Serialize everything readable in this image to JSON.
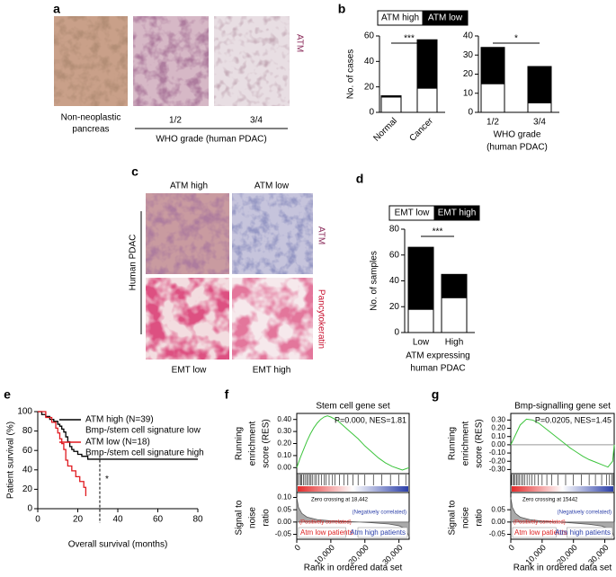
{
  "panel_labels": [
    "a",
    "b",
    "c",
    "d",
    "e",
    "f",
    "g"
  ],
  "panel_a": {
    "stain": "ATM",
    "captions": [
      "Non-neoplastic",
      "pancreas"
    ],
    "grades": [
      "1/2",
      "3/4"
    ],
    "grade_title": "WHO grade (human PDAC)"
  },
  "panel_c": {
    "columns": [
      "ATM high",
      "ATM low"
    ],
    "row_title": "Human PDAC",
    "stains": [
      "ATM",
      "Pancytokeratin"
    ],
    "bottom": [
      "EMT low",
      "EMT high"
    ]
  },
  "chart_data": [
    {
      "type": "bar",
      "stacked": true,
      "ylabel": "No. of cases",
      "categories": [
        "Normal",
        "Cancer"
      ],
      "series": [
        {
          "name": "ATM high",
          "color": "#ffffff",
          "values": [
            12,
            19
          ]
        },
        {
          "name": "ATM low",
          "color": "#000000",
          "values": [
            1,
            38
          ]
        }
      ],
      "ylim": [
        0,
        60
      ],
      "yticks": [
        0,
        20,
        40,
        60
      ],
      "annotation": "***",
      "legend": true,
      "rotate_categories": true
    },
    {
      "type": "bar",
      "stacked": true,
      "xlabel": [
        "WHO grade",
        "(human PDAC)"
      ],
      "categories": [
        "1/2",
        "3/4"
      ],
      "series": [
        {
          "color": "#ffffff",
          "values": [
            15,
            5
          ]
        },
        {
          "color": "#000000",
          "values": [
            19,
            19
          ]
        }
      ],
      "ylim": [
        0,
        40
      ],
      "yticks": [
        0,
        10,
        20,
        30,
        40
      ],
      "annotation": "*"
    },
    {
      "type": "bar",
      "stacked": true,
      "ylabel": "No. of samples",
      "xlabel": [
        "ATM expressing",
        "human PDAC"
      ],
      "categories": [
        "Low",
        "High"
      ],
      "series": [
        {
          "name": "EMT low",
          "color": "#ffffff",
          "values": [
            18,
            27
          ]
        },
        {
          "name": "EMT high",
          "color": "#000000",
          "values": [
            48,
            18
          ]
        }
      ],
      "ylim": [
        0,
        80
      ],
      "yticks": [
        0,
        20,
        40,
        60,
        80
      ],
      "annotation": "***",
      "legend": true
    },
    {
      "type": "line",
      "step": true,
      "xlabel": "Overall survival (months)",
      "ylabel": "Patient survival (%)",
      "xlim": [
        0,
        80
      ],
      "xticks": [
        0,
        20,
        40,
        60,
        80
      ],
      "ylim": [
        0,
        100
      ],
      "yticks": [
        0,
        20,
        40,
        60,
        80,
        100
      ],
      "series": [
        {
          "name": "ATM high (N=39)",
          "subtitle": "Bmp-/stem cell signature low",
          "color": "#000000",
          "x": [
            0,
            2,
            4,
            6,
            8,
            10,
            11,
            12,
            13,
            14,
            15,
            16,
            17,
            18,
            20,
            22,
            25,
            80
          ],
          "values": [
            100,
            97,
            95,
            92,
            90,
            87,
            85,
            82,
            79,
            74,
            69,
            64,
            61,
            59,
            56,
            54,
            51,
            51
          ]
        },
        {
          "name": "ATM low (N=18)",
          "subtitle": "Bmp-/stem cell signature high",
          "color": "#e0191f",
          "x": [
            0,
            4,
            7,
            9,
            10,
            11,
            12,
            13,
            14,
            15,
            17,
            19,
            21,
            23,
            24
          ],
          "values": [
            100,
            94,
            89,
            83,
            78,
            72,
            67,
            61,
            50,
            44,
            39,
            33,
            28,
            22,
            13
          ]
        }
      ],
      "annotation": "*",
      "marker_x": 31
    },
    {
      "type": "gsea",
      "title": "Stem cell gene set",
      "annotation": "P=0.000, NES=1.81",
      "ylabel": [
        "Running",
        "enrichment",
        "score (RES)"
      ],
      "metric_label": [
        "Signal to",
        "noise",
        "ratio"
      ],
      "xlabel": "Rank in ordered data set",
      "xlim": [
        0,
        33000
      ],
      "xticks": [
        0,
        {
          "value": 10000,
          "label": "10,000"
        },
        {
          "value": 20000,
          "label": "20,000"
        },
        {
          "value": 30000,
          "label": "30,000"
        }
      ],
      "ylim": [
        -0.05,
        0.45
      ],
      "yticks": [
        {
          "value": 0,
          "label": "0.00"
        },
        {
          "value": 0.1,
          "label": "0.10"
        },
        {
          "value": 0.2,
          "label": "0.20"
        },
        {
          "value": 0.3,
          "label": "0.30"
        },
        {
          "value": 0.4,
          "label": "0.40"
        }
      ],
      "color": "#3cc43c",
      "x": [
        0,
        1000,
        2000,
        3000,
        4000,
        5000,
        6000,
        7000,
        8000,
        9000,
        10000,
        12000,
        14000,
        16000,
        18000,
        20000,
        22000,
        24000,
        26000,
        28000,
        30000,
        31000,
        32000,
        33000
      ],
      "values": [
        0,
        0.08,
        0.15,
        0.22,
        0.28,
        0.33,
        0.37,
        0.4,
        0.42,
        0.43,
        0.42,
        0.39,
        0.34,
        0.29,
        0.24,
        0.18,
        0.13,
        0.08,
        0.04,
        0.01,
        -0.01,
        -0.02,
        -0.01,
        0
      ],
      "hits": [
        300,
        800,
        1200,
        1500,
        2000,
        2400,
        2900,
        3300,
        3800,
        4200,
        4700,
        5300,
        5800,
        6500,
        7200,
        8000,
        8600,
        9500,
        10500,
        11200,
        12500,
        13800,
        15000,
        16500,
        18000,
        20000,
        22500,
        25000,
        27500,
        30000,
        32000
      ],
      "zero_crossing": "Zero crossing at 18,442",
      "pos_label": "(Positively correlated)",
      "neg_label": "(Negatively correlated)",
      "pos_group": "Atm low patients",
      "neg_group": "Atm high patients",
      "metric": {
        "x": [
          0,
          500,
          1500,
          3000,
          6000,
          10000,
          15000,
          18442,
          22000,
          27000,
          30000,
          31500,
          32500,
          33000
        ],
        "values": [
          0.1,
          0.06,
          0.035,
          0.02,
          0.01,
          0.005,
          0.002,
          0,
          -0.003,
          -0.008,
          -0.015,
          -0.025,
          -0.045,
          -0.06
        ],
        "ylim": [
          -0.07,
          0.12
        ],
        "yticks": [
          {
            "value": -0.05,
            "label": "-0.05"
          },
          {
            "value": 0,
            "label": "0.00"
          },
          {
            "value": 0.05,
            "label": "0.05"
          },
          {
            "value": 0.1,
            "label": "0.10"
          }
        ]
      }
    },
    {
      "type": "gsea",
      "title": "Bmp-signalling gene set",
      "annotation": "P=0.0205, NES=1.45",
      "ylabel": [
        "Running",
        "enrichment",
        "score (RES)"
      ],
      "metric_label": [
        "Signal to",
        "noise",
        "ratio"
      ],
      "xlabel": "Rank in ordered data set",
      "xlim": [
        0,
        33000
      ],
      "xticks": [
        0,
        {
          "value": 10000,
          "label": "10,000"
        },
        {
          "value": 20000,
          "label": "20,000"
        },
        {
          "value": 30000,
          "label": "30,000"
        }
      ],
      "ylim": [
        -0.35,
        0.38
      ],
      "yticks": [
        {
          "value": -0.3,
          "label": "-0.30"
        },
        {
          "value": -0.2,
          "label": "-0.20"
        },
        {
          "value": -0.1,
          "label": "-0.10"
        },
        {
          "value": 0,
          "label": "0.00"
        },
        {
          "value": 0.1,
          "label": "0.10"
        },
        {
          "value": 0.2,
          "label": "0.20"
        },
        {
          "value": 0.3,
          "label": "0.30"
        }
      ],
      "color": "#3cc43c",
      "zero_line": true,
      "x": [
        0,
        1500,
        3000,
        5000,
        7000,
        9000,
        11000,
        13000,
        15000,
        17000,
        19000,
        21000,
        23000,
        25000,
        27000,
        29000,
        31000,
        32500,
        33000
      ],
      "values": [
        0,
        0.12,
        0.24,
        0.31,
        0.3,
        0.26,
        0.2,
        0.14,
        0.08,
        0.02,
        -0.04,
        -0.09,
        -0.14,
        -0.18,
        -0.21,
        -0.24,
        -0.27,
        -0.2,
        0
      ],
      "hits": [
        200,
        600,
        1000,
        1400,
        1900,
        2300,
        2800,
        3400,
        3900,
        4500,
        5200,
        6000,
        6800,
        7700,
        8800,
        10000,
        11500,
        13000,
        15000,
        17500,
        20000,
        22500,
        25000,
        27000,
        29000,
        30500,
        31500,
        32200,
        32700
      ],
      "zero_crossing": "Zero crossing at 15442",
      "pos_label": "(Positively correlated)",
      "neg_label": "(Negatively correlated)",
      "pos_group": "Atm low patients",
      "neg_group": "Atm high patients",
      "metric": {
        "x": [
          0,
          500,
          1500,
          3000,
          6000,
          10000,
          15442,
          20000,
          25000,
          29000,
          31000,
          32500,
          33000
        ],
        "values": [
          0.1,
          0.06,
          0.035,
          0.02,
          0.01,
          0.004,
          0,
          -0.004,
          -0.009,
          -0.016,
          -0.026,
          -0.045,
          -0.06
        ],
        "ylim": [
          -0.07,
          0.12
        ],
        "yticks": [
          {
            "value": -0.05,
            "label": "-0.05"
          },
          {
            "value": 0,
            "label": "0.00"
          },
          {
            "value": 0.05,
            "label": "0.05"
          }
        ]
      }
    }
  ]
}
